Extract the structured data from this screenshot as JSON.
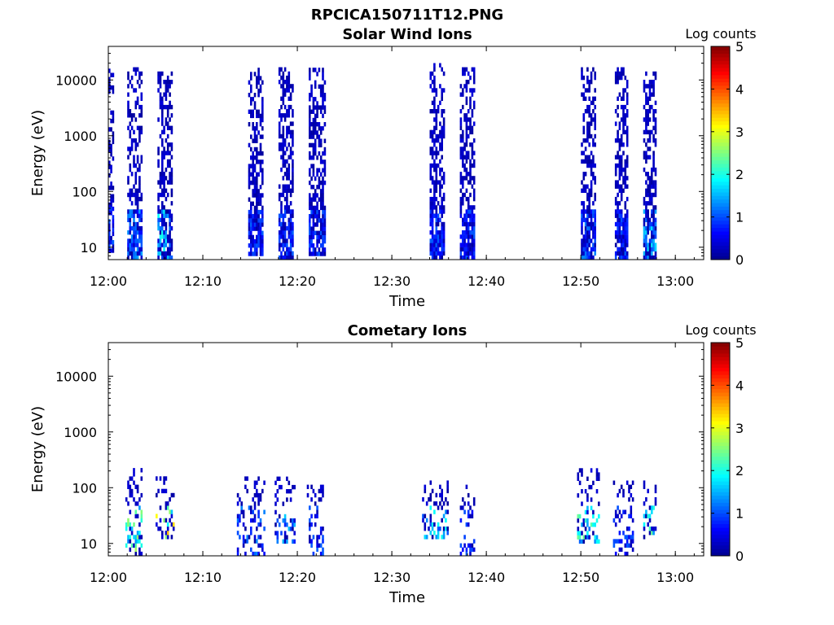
{
  "figure_title": "RPCICA150711T12.PNG",
  "colors": {
    "colormap": [
      "#00008f",
      "#0000ff",
      "#0080ff",
      "#00ffff",
      "#80ff80",
      "#ffff00",
      "#ff8000",
      "#ff0000",
      "#800000"
    ],
    "axis": "#000000",
    "background": "#ffffff"
  },
  "chart_data": [
    {
      "type": "heatmap",
      "title": "Solar Wind Ions",
      "xlabel": "Time",
      "ylabel": "Energy (eV)",
      "x_ticks": [
        "12:00",
        "12:10",
        "12:20",
        "12:30",
        "12:40",
        "12:50",
        "13:00"
      ],
      "y_ticks": [
        "10",
        "100",
        "1000",
        "10000"
      ],
      "y_scale": "log",
      "ylim": [
        6,
        40000
      ],
      "xlim": [
        "12:00",
        "13:03"
      ],
      "colorbar": {
        "label": "Log counts",
        "ticks": [
          "0",
          "1",
          "2",
          "3",
          "4",
          "5"
        ],
        "range": [
          0,
          5
        ]
      },
      "bursts": [
        {
          "t_start": "12:00.0",
          "t_end": "12:00.6",
          "e_min": 8,
          "e_max": 15000,
          "density": 0.55,
          "low_level": 1.0
        },
        {
          "t_start": "12:02.0",
          "t_end": "12:03.6",
          "e_min": 6,
          "e_max": 15000,
          "density": 0.6,
          "low_level": 1.3
        },
        {
          "t_start": "12:05.2",
          "t_end": "12:06.8",
          "e_min": 6,
          "e_max": 14000,
          "density": 0.6,
          "low_level": 1.8
        },
        {
          "t_start": "12:14.8",
          "t_end": "12:16.2",
          "e_min": 7,
          "e_max": 15000,
          "density": 0.6,
          "low_level": 1.0
        },
        {
          "t_start": "12:18.0",
          "t_end": "12:19.4",
          "e_min": 6,
          "e_max": 15000,
          "density": 0.6,
          "low_level": 1.0
        },
        {
          "t_start": "12:21.2",
          "t_end": "12:22.8",
          "e_min": 7,
          "e_max": 14000,
          "density": 0.6,
          "low_level": 1.0
        },
        {
          "t_start": "12:34.0",
          "t_end": "12:35.6",
          "e_min": 6,
          "e_max": 20000,
          "density": 0.6,
          "low_level": 1.0
        },
        {
          "t_start": "12:37.2",
          "t_end": "12:38.8",
          "e_min": 6,
          "e_max": 15000,
          "density": 0.6,
          "low_level": 1.0
        },
        {
          "t_start": "12:50.0",
          "t_end": "12:51.6",
          "e_min": 6,
          "e_max": 15000,
          "density": 0.6,
          "low_level": 1.2
        },
        {
          "t_start": "12:53.6",
          "t_end": "12:55.0",
          "e_min": 6,
          "e_max": 15000,
          "density": 0.6,
          "low_level": 1.0
        },
        {
          "t_start": "12:56.6",
          "t_end": "12:58.0",
          "e_min": 6,
          "e_max": 14000,
          "density": 0.6,
          "low_level": 1.6
        }
      ]
    },
    {
      "type": "heatmap",
      "title": "Cometary Ions",
      "xlabel": "Time",
      "ylabel": "Energy (eV)",
      "x_ticks": [
        "12:00",
        "12:10",
        "12:20",
        "12:30",
        "12:40",
        "12:50",
        "13:00"
      ],
      "y_ticks": [
        "10",
        "100",
        "1000",
        "10000"
      ],
      "y_scale": "log",
      "ylim": [
        6,
        40000
      ],
      "xlim": [
        "12:00",
        "13:03"
      ],
      "colorbar": {
        "label": "Log counts",
        "ticks": [
          "0",
          "1",
          "2",
          "3",
          "4",
          "5"
        ],
        "range": [
          0,
          5
        ]
      },
      "bursts": [
        {
          "t_start": "12:01.8",
          "t_end": "12:03.6",
          "e_min": 6,
          "e_max": 200,
          "density": 0.35,
          "low_level": 2.5
        },
        {
          "t_start": "12:05.0",
          "t_end": "12:07.0",
          "e_min": 12,
          "e_max": 150,
          "density": 0.35,
          "low_level": 3.2
        },
        {
          "t_start": "12:13.6",
          "t_end": "12:16.4",
          "e_min": 6,
          "e_max": 150,
          "density": 0.3,
          "low_level": 1.2
        },
        {
          "t_start": "12:17.6",
          "t_end": "12:19.6",
          "e_min": 10,
          "e_max": 150,
          "density": 0.3,
          "low_level": 1.5
        },
        {
          "t_start": "12:21.0",
          "t_end": "12:22.6",
          "e_min": 6,
          "e_max": 120,
          "density": 0.3,
          "low_level": 1.0
        },
        {
          "t_start": "12:33.2",
          "t_end": "12:36.0",
          "e_min": 12,
          "e_max": 120,
          "density": 0.35,
          "low_level": 1.8
        },
        {
          "t_start": "12:37.2",
          "t_end": "12:38.8",
          "e_min": 6,
          "e_max": 100,
          "density": 0.3,
          "low_level": 1.0
        },
        {
          "t_start": "12:49.6",
          "t_end": "12:52.0",
          "e_min": 10,
          "e_max": 200,
          "density": 0.35,
          "low_level": 2.2
        },
        {
          "t_start": "12:53.4",
          "t_end": "12:55.6",
          "e_min": 6,
          "e_max": 120,
          "density": 0.3,
          "low_level": 1.0
        },
        {
          "t_start": "12:56.6",
          "t_end": "12:58.0",
          "e_min": 12,
          "e_max": 120,
          "density": 0.35,
          "low_level": 2.6
        }
      ]
    }
  ]
}
